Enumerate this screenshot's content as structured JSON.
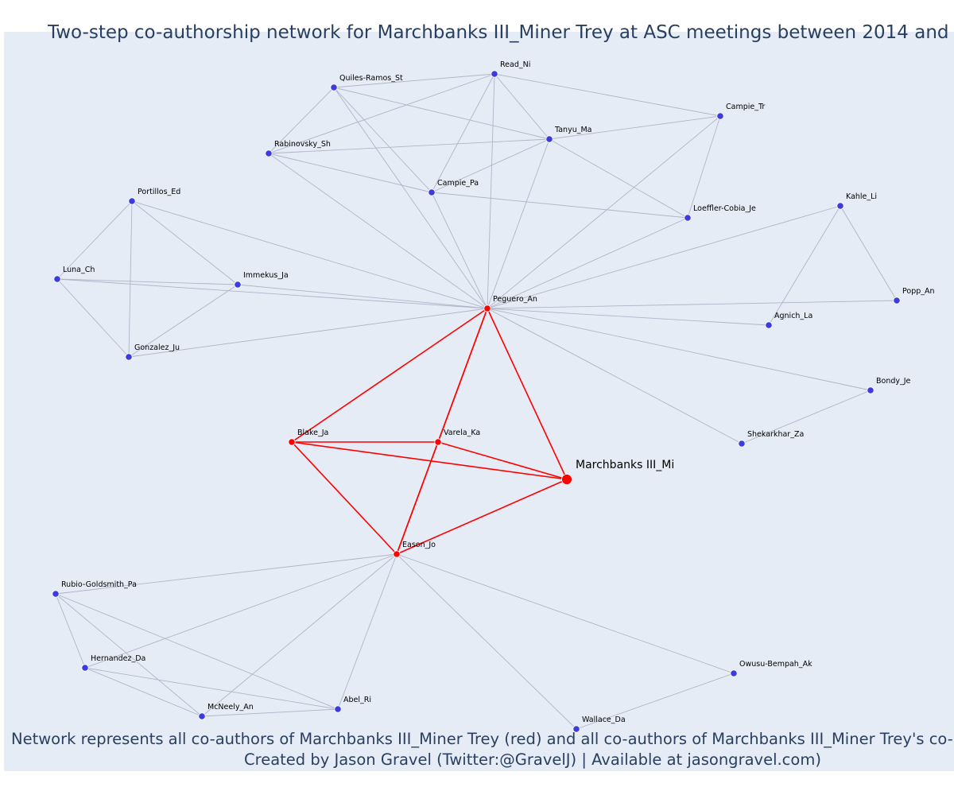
{
  "title": "Two-step co-authorship network for Marchbanks III_Miner Trey at ASC meetings between 2014 and",
  "footer_line1": "Network represents all co-authors of Marchbanks III_Miner Trey (red) and all co-authors of Marchbanks III_Miner Trey's co-autho",
  "footer_line2": "Created by Jason Gravel (Twitter:@GravelJ) | Available at jasongravel.com)",
  "colors": {
    "background": "#e5ecf6",
    "first_step": "#ff0000",
    "second_step": "#3b3be0",
    "second_edge": "#b0b4c8",
    "text": "#2a3f5f"
  },
  "nodes": [
    {
      "id": "read_ni",
      "label": "Read_Ni",
      "group": "second"
    },
    {
      "id": "quiles",
      "label": "Quiles-Ramos_St",
      "group": "second"
    },
    {
      "id": "campie_tr",
      "label": "Campie_Tr",
      "group": "second"
    },
    {
      "id": "tanyu",
      "label": "Tanyu_Ma",
      "group": "second"
    },
    {
      "id": "rabinovsky",
      "label": "Rabinovsky_Sh",
      "group": "second"
    },
    {
      "id": "campie_pa",
      "label": "Campie_Pa",
      "group": "second"
    },
    {
      "id": "portillos",
      "label": "Portillos_Ed",
      "group": "second"
    },
    {
      "id": "kahle",
      "label": "Kahle_Li",
      "group": "second"
    },
    {
      "id": "loeffler",
      "label": "Loeffler-Cobia_Je",
      "group": "second"
    },
    {
      "id": "luna",
      "label": "Luna_Ch",
      "group": "second"
    },
    {
      "id": "immekus",
      "label": "Immekus_Ja",
      "group": "second"
    },
    {
      "id": "peguero",
      "label": "Peguero_An",
      "group": "first"
    },
    {
      "id": "popp",
      "label": "Popp_An",
      "group": "second"
    },
    {
      "id": "agnich",
      "label": "Agnich_La",
      "group": "second"
    },
    {
      "id": "gonzalez",
      "label": "Gonzalez_Ju",
      "group": "second"
    },
    {
      "id": "bondy",
      "label": "Bondy_Je",
      "group": "second"
    },
    {
      "id": "blake",
      "label": "Blake_Ja",
      "group": "first"
    },
    {
      "id": "varela",
      "label": "Varela_Ka",
      "group": "first"
    },
    {
      "id": "shekarkhar",
      "label": "Shekarkhar_Za",
      "group": "second"
    },
    {
      "id": "marchbanks",
      "label": "Marchbanks III_Mi",
      "group": "ego"
    },
    {
      "id": "eason",
      "label": "Eason_Jo",
      "group": "first"
    },
    {
      "id": "rubio",
      "label": "Rubio-Goldsmith_Pa",
      "group": "second"
    },
    {
      "id": "owusu",
      "label": "Owusu-Bempah_Ak",
      "group": "second"
    },
    {
      "id": "hernandez",
      "label": "Hernandez_Da",
      "group": "second"
    },
    {
      "id": "abel",
      "label": "Abel_Ri",
      "group": "second"
    },
    {
      "id": "mcneely",
      "label": "McNeely_An",
      "group": "second"
    },
    {
      "id": "wallace",
      "label": "Wallace_Da",
      "group": "second"
    }
  ],
  "edges": [
    [
      "peguero",
      "marchbanks"
    ],
    [
      "peguero",
      "blake"
    ],
    [
      "peguero",
      "varela"
    ],
    [
      "peguero",
      "eason"
    ],
    [
      "blake",
      "varela"
    ],
    [
      "blake",
      "marchbanks"
    ],
    [
      "blake",
      "eason"
    ],
    [
      "varela",
      "marchbanks"
    ],
    [
      "varela",
      "eason"
    ],
    [
      "eason",
      "marchbanks"
    ],
    [
      "quiles",
      "read_ni"
    ],
    [
      "quiles",
      "tanyu"
    ],
    [
      "quiles",
      "rabinovsky"
    ],
    [
      "quiles",
      "campie_pa"
    ],
    [
      "quiles",
      "peguero"
    ],
    [
      "read_ni",
      "campie_tr"
    ],
    [
      "read_ni",
      "rabinovsky"
    ],
    [
      "read_ni",
      "campie_pa"
    ],
    [
      "read_ni",
      "peguero"
    ],
    [
      "read_ni",
      "tanyu"
    ],
    [
      "campie_tr",
      "tanyu"
    ],
    [
      "campie_tr",
      "loeffler"
    ],
    [
      "campie_tr",
      "peguero"
    ],
    [
      "tanyu",
      "rabinovsky"
    ],
    [
      "tanyu",
      "campie_pa"
    ],
    [
      "tanyu",
      "loeffler"
    ],
    [
      "tanyu",
      "peguero"
    ],
    [
      "rabinovsky",
      "campie_pa"
    ],
    [
      "rabinovsky",
      "peguero"
    ],
    [
      "campie_pa",
      "loeffler"
    ],
    [
      "campie_pa",
      "peguero"
    ],
    [
      "loeffler",
      "peguero"
    ],
    [
      "portillos",
      "luna"
    ],
    [
      "portillos",
      "immekus"
    ],
    [
      "portillos",
      "gonzalez"
    ],
    [
      "portillos",
      "peguero"
    ],
    [
      "luna",
      "immekus"
    ],
    [
      "luna",
      "gonzalez"
    ],
    [
      "luna",
      "peguero"
    ],
    [
      "immekus",
      "gonzalez"
    ],
    [
      "immekus",
      "peguero"
    ],
    [
      "gonzalez",
      "peguero"
    ],
    [
      "kahle",
      "agnich"
    ],
    [
      "kahle",
      "popp"
    ],
    [
      "kahle",
      "peguero"
    ],
    [
      "popp",
      "peguero"
    ],
    [
      "agnich",
      "peguero"
    ],
    [
      "bondy",
      "shekarkhar"
    ],
    [
      "bondy",
      "peguero"
    ],
    [
      "shekarkhar",
      "peguero"
    ],
    [
      "rubio",
      "hernandez"
    ],
    [
      "rubio",
      "mcneely"
    ],
    [
      "rubio",
      "abel"
    ],
    [
      "rubio",
      "eason"
    ],
    [
      "hernandez",
      "mcneely"
    ],
    [
      "hernandez",
      "abel"
    ],
    [
      "hernandez",
      "eason"
    ],
    [
      "mcneely",
      "abel"
    ],
    [
      "mcneely",
      "eason"
    ],
    [
      "abel",
      "eason"
    ],
    [
      "owusu",
      "wallace"
    ],
    [
      "owusu",
      "eason"
    ],
    [
      "wallace",
      "eason"
    ]
  ]
}
